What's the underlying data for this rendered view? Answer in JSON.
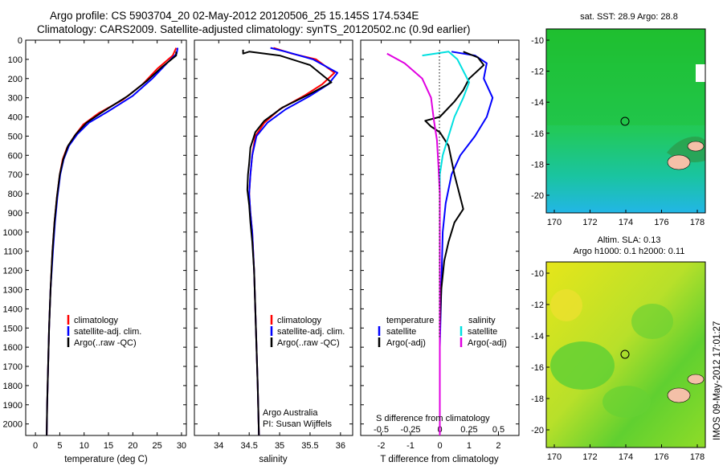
{
  "title": {
    "line1": "Argo profile: CS 5903704_20 02-May-2012 20120506_25 15.145S 174.534E",
    "line2": "Climatology: CARS2009. Satellite-adjusted climatology: synTS_20120502.nc (0.9d earlier)"
  },
  "colors": {
    "climatology": "#ff0000",
    "satellite": "#0000ff",
    "argo": "#000000",
    "sat_salinity": "#00e0e0",
    "argo_salinity": "#e000e0"
  },
  "depth_ticks": [
    0,
    100,
    200,
    300,
    400,
    500,
    600,
    700,
    800,
    900,
    1000,
    1100,
    1200,
    1300,
    1400,
    1500,
    1600,
    1700,
    1800,
    1900,
    2000
  ],
  "temperature_panel": {
    "xlabel": "temperature (deg C)",
    "xticks": [
      0,
      5,
      10,
      15,
      20,
      25,
      30
    ],
    "xlim": [
      -2,
      31
    ],
    "ylim": [
      2060,
      0
    ],
    "legend": [
      "climatology",
      "satellite-adj. clim.",
      "Argo(..raw -QC)"
    ],
    "chart_data": {
      "type": "line",
      "series": [
        {
          "name": "climatology",
          "color": "#ff0000",
          "points": [
            [
              28.9,
              40
            ],
            [
              28.2,
              80
            ],
            [
              25,
              150
            ],
            [
              22,
              230
            ],
            [
              18,
              310
            ],
            [
              13,
              380
            ],
            [
              9.8,
              440
            ],
            [
              8,
              500
            ],
            [
              6.5,
              560
            ],
            [
              5.6,
              620
            ],
            [
              5,
              700
            ],
            [
              4.4,
              820
            ],
            [
              3.9,
              950
            ],
            [
              3.5,
              1100
            ],
            [
              3.1,
              1300
            ],
            [
              2.8,
              1500
            ],
            [
              2.6,
              1700
            ],
            [
              2.4,
              1900
            ],
            [
              2.3,
              2060
            ]
          ]
        },
        {
          "name": "satellite-adj. clim.",
          "color": "#0000ff",
          "points": [
            [
              29.2,
              40
            ],
            [
              29,
              70
            ],
            [
              27,
              120
            ],
            [
              24,
              200
            ],
            [
              20,
              290
            ],
            [
              15,
              370
            ],
            [
              11,
              430
            ],
            [
              8.6,
              490
            ],
            [
              6.9,
              550
            ],
            [
              5.8,
              620
            ],
            [
              5.1,
              700
            ],
            [
              4.5,
              820
            ],
            [
              4,
              950
            ],
            [
              3.6,
              1100
            ],
            [
              3.1,
              1300
            ],
            [
              2.8,
              1500
            ],
            [
              2.6,
              1700
            ],
            [
              2.4,
              1900
            ],
            [
              2.3,
              2060
            ]
          ]
        },
        {
          "name": "Argo(..raw -QC)",
          "color": "#000000",
          "points": [
            [
              28.9,
              60
            ],
            [
              28.9,
              80
            ],
            [
              26,
              140
            ],
            [
              23,
              210
            ],
            [
              19,
              290
            ],
            [
              14,
              370
            ],
            [
              10.5,
              430
            ],
            [
              8.3,
              490
            ],
            [
              6.7,
              550
            ],
            [
              5.7,
              620
            ],
            [
              5,
              700
            ],
            [
              4.4,
              820
            ],
            [
              3.9,
              950
            ],
            [
              3.5,
              1100
            ],
            [
              3.1,
              1300
            ],
            [
              2.8,
              1500
            ],
            [
              2.6,
              1700
            ],
            [
              2.4,
              1900
            ],
            [
              2.3,
              2060
            ]
          ]
        }
      ]
    }
  },
  "salinity_panel": {
    "xlabel": "salinity",
    "xticks": [
      34,
      34.5,
      35,
      35.5,
      36
    ],
    "xlim": [
      33.6,
      36.2
    ],
    "ylim": [
      2060,
      0
    ],
    "legend": [
      "climatology",
      "satellite-adj. clim.",
      "Argo(..raw -QC)"
    ],
    "annotation": [
      "Argo Australia",
      "PI: Susan Wijffels"
    ],
    "chart_data": {
      "type": "line",
      "series": [
        {
          "name": "climatology",
          "color": "#ff0000",
          "points": [
            [
              34.9,
              40
            ],
            [
              35.2,
              70
            ],
            [
              35.6,
              100
            ],
            [
              35.9,
              170
            ],
            [
              35.7,
              230
            ],
            [
              35.4,
              290
            ],
            [
              35,
              360
            ],
            [
              34.75,
              430
            ],
            [
              34.6,
              500
            ],
            [
              34.55,
              600
            ],
            [
              34.52,
              700
            ],
            [
              34.5,
              800
            ],
            [
              34.52,
              900
            ],
            [
              34.55,
              1000
            ],
            [
              34.58,
              1200
            ],
            [
              34.6,
              1400
            ],
            [
              34.62,
              1600
            ],
            [
              34.64,
              1800
            ],
            [
              34.66,
              2060
            ]
          ]
        },
        {
          "name": "satellite-adj. clim.",
          "color": "#0000ff",
          "points": [
            [
              34.85,
              40
            ],
            [
              35.1,
              60
            ],
            [
              35.55,
              100
            ],
            [
              35.95,
              170
            ],
            [
              35.8,
              230
            ],
            [
              35.5,
              290
            ],
            [
              35.1,
              360
            ],
            [
              34.8,
              430
            ],
            [
              34.62,
              500
            ],
            [
              34.55,
              600
            ],
            [
              34.52,
              700
            ],
            [
              34.5,
              800
            ],
            [
              34.52,
              900
            ],
            [
              34.55,
              1000
            ],
            [
              34.58,
              1200
            ],
            [
              34.6,
              1400
            ],
            [
              34.62,
              1600
            ],
            [
              34.64,
              1800
            ],
            [
              34.66,
              2060
            ]
          ]
        },
        {
          "name": "Argo(..raw -QC)",
          "color": "#000000",
          "points": [
            [
              34.4,
              50
            ],
            [
              34.4,
              70
            ],
            [
              34.5,
              60
            ],
            [
              35,
              80
            ],
            [
              35.5,
              130
            ],
            [
              35.85,
              220
            ],
            [
              35.5,
              280
            ],
            [
              35.05,
              350
            ],
            [
              34.75,
              420
            ],
            [
              34.6,
              480
            ],
            [
              34.52,
              560
            ],
            [
              34.5,
              640
            ],
            [
              34.48,
              700
            ],
            [
              34.47,
              780
            ],
            [
              34.5,
              860
            ],
            [
              34.52,
              950
            ],
            [
              34.55,
              1050
            ],
            [
              34.58,
              1200
            ],
            [
              34.6,
              1400
            ],
            [
              34.62,
              1600
            ],
            [
              34.64,
              1800
            ],
            [
              34.66,
              2060
            ]
          ]
        }
      ]
    }
  },
  "difference_panel": {
    "xlabel": "T difference from climatology",
    "xlabel_top": "S difference from climatology",
    "xticks": [
      -2,
      -1,
      0,
      1,
      2
    ],
    "xticks_top": [
      "-0.5",
      "-0.25",
      "0",
      "0.25",
      "0.5"
    ],
    "xlim": [
      -2.7,
      2.7
    ],
    "ylim": [
      2060,
      0
    ],
    "legend_temp_title": "temperature",
    "legend_temp": [
      "satellite",
      "Argo(-adj)"
    ],
    "legend_sal_title": "salinity",
    "legend_sal": [
      "satellite",
      "Argo(-adj)"
    ],
    "chart_data": {
      "type": "line",
      "series": [
        {
          "name": "temperature satellite",
          "color": "#0000ff",
          "points": [
            [
              0.4,
              60
            ],
            [
              1.2,
              80
            ],
            [
              1.6,
              120
            ],
            [
              1.5,
              200
            ],
            [
              1.8,
              300
            ],
            [
              1.6,
              400
            ],
            [
              1.2,
              500
            ],
            [
              0.7,
              600
            ],
            [
              0.4,
              700
            ],
            [
              0.2,
              850
            ],
            [
              0.1,
              1000
            ],
            [
              0.05,
              1300
            ],
            [
              0,
              1600
            ],
            [
              0,
              2060
            ]
          ]
        },
        {
          "name": "temperature Argo(-adj)",
          "color": "#000000",
          "points": [
            [
              0.8,
              60
            ],
            [
              1.3,
              90
            ],
            [
              1.5,
              130
            ],
            [
              1.0,
              200
            ],
            [
              0.8,
              260
            ],
            [
              0.5,
              320
            ],
            [
              0,
              400
            ],
            [
              -0.5,
              420
            ],
            [
              -0.3,
              450
            ],
            [
              0,
              480
            ],
            [
              0.3,
              550
            ],
            [
              0.5,
              700
            ],
            [
              0.8,
              880
            ],
            [
              0.5,
              950
            ],
            [
              0.3,
              1050
            ],
            [
              0.15,
              1150
            ],
            [
              0.05,
              1300
            ],
            [
              0,
              1500
            ],
            [
              0,
              2060
            ]
          ]
        },
        {
          "name": "salinity satellite",
          "color": "#00e0e0",
          "points": [
            [
              -0.6,
              80
            ],
            [
              0.3,
              60
            ],
            [
              0.6,
              100
            ],
            [
              1.0,
              220
            ],
            [
              0.8,
              300
            ],
            [
              0.5,
              400
            ],
            [
              0.3,
              500
            ],
            [
              0.1,
              600
            ],
            [
              0,
              700
            ],
            [
              0,
              800
            ],
            [
              0,
              1000
            ],
            [
              0,
              2060
            ]
          ]
        },
        {
          "name": "salinity Argo(-adj)",
          "color": "#e000e0",
          "points": [
            [
              -1.8,
              70
            ],
            [
              -1.2,
              120
            ],
            [
              -0.6,
              200
            ],
            [
              -0.3,
              300
            ],
            [
              -0.2,
              420
            ],
            [
              -0.1,
              520
            ],
            [
              -0.05,
              650
            ],
            [
              0,
              800
            ],
            [
              0,
              2060
            ]
          ]
        }
      ]
    }
  },
  "sst_map": {
    "title": "sat. SST: 28.9  Argo: 28.8",
    "xticks": [
      "170",
      "172",
      "174",
      "176",
      "178"
    ],
    "yticks": [
      "-10",
      "-12",
      "-14",
      "-16",
      "-18",
      "-20"
    ]
  },
  "sla_map": {
    "title_line1": "Altim. SLA: 0.13",
    "title_line2": "Argo h1000: 0.1 h2000: 0.11",
    "xticks": [
      "170",
      "172",
      "174",
      "176",
      "178"
    ],
    "yticks": [
      "-10",
      "-12",
      "-14",
      "-16",
      "-18",
      "-20"
    ]
  },
  "footer_stamp": "IMOS 09-May-2012 17:01:27"
}
